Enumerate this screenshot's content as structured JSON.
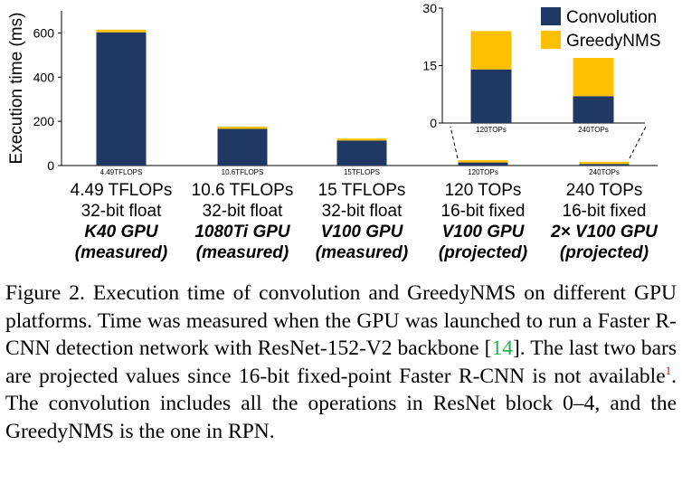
{
  "chart_data": {
    "type": "bar",
    "stacked": true,
    "ylabel": "Execution time (ms)",
    "ylim": [
      0,
      700
    ],
    "yticks": [
      0,
      200,
      400,
      600
    ],
    "small_tick_labels": [
      "4.49TFLOPS",
      "10.6TFLOPS",
      "15TFLOPS",
      "120TOPs",
      "240TOPs"
    ],
    "categories": [
      {
        "lines": [
          "4.49 TFLOPs",
          "32-bit float"
        ],
        "bold": [
          "K40 GPU",
          "(measured)"
        ]
      },
      {
        "lines": [
          "10.6 TFLOPs",
          "32-bit float"
        ],
        "bold": [
          "1080Ti GPU",
          "(measured)"
        ]
      },
      {
        "lines": [
          "15 TFLOPs",
          "32-bit float"
        ],
        "bold": [
          "V100 GPU",
          "(measured)"
        ]
      },
      {
        "lines": [
          "120 TOPs",
          "16-bit fixed"
        ],
        "bold": [
          "V100 GPU",
          "(projected)"
        ]
      },
      {
        "lines": [
          "240 TOPs",
          "16-bit fixed"
        ],
        "bold": [
          "2× V100 GPU",
          "(projected)"
        ]
      }
    ],
    "series": [
      {
        "name": "Convolution",
        "color": "#1f3864",
        "values": [
          603,
          166,
          113,
          14,
          7
        ]
      },
      {
        "name": "GreedyNMS",
        "color": "#ffc000",
        "values": [
          12,
          10,
          9,
          10,
          10
        ]
      }
    ],
    "legend_position": "top-right",
    "inset": {
      "ylim": [
        0,
        30
      ],
      "yticks": [
        0,
        15,
        30
      ],
      "categories": [
        "120TOPs",
        "240TOPs"
      ],
      "convolution": [
        14,
        7
      ],
      "greedynms": [
        10,
        10
      ]
    }
  },
  "caption": {
    "label": "Figure 2.",
    "text_a": " Execution time of convolution and GreedyNMS on different GPU platforms.  Time was measured when the GPU was launched to run a Faster R-CNN detection network with ResNet-152-V2 backbone [",
    "ref": "14",
    "text_b": "].  The last two bars are projected values since 16-bit fixed-point Faster R-CNN is not available",
    "footnote": "1",
    "text_c": ". The convolution includes all the operations in ResNet block 0–4, and the GreedyNMS is the one in RPN."
  }
}
